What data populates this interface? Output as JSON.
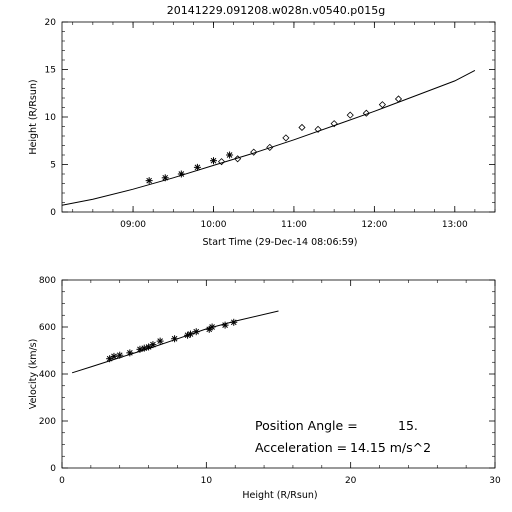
{
  "chart_data": [
    {
      "type": "scatter",
      "title": "20141229.091208.w028n.v0540.p015g",
      "xlabel": "Start Time (29-Dec-14 08:06:59)",
      "ylabel": "Height (R/Rsun)",
      "x_axis": {
        "start": "08:06:59",
        "end": "13:30",
        "ticks": [
          "09:00",
          "10:00",
          "11:00",
          "12:00",
          "13:00"
        ]
      },
      "ylim": [
        0,
        20
      ],
      "yticks": [
        0,
        5,
        10,
        15,
        20
      ],
      "fit_line": {
        "x": [
          "08:06:59",
          "08:30",
          "09:00",
          "09:30",
          "10:00",
          "10:30",
          "11:00",
          "11:30",
          "12:00",
          "12:30",
          "13:00",
          "13:15"
        ],
        "y": [
          0.7,
          1.35,
          2.4,
          3.6,
          4.9,
          6.2,
          7.6,
          9.1,
          10.6,
          12.2,
          13.8,
          14.9
        ]
      },
      "series": [
        {
          "marker": "star",
          "x": [
            "09:12",
            "09:24",
            "09:36",
            "09:48",
            "10:00",
            "10:12"
          ],
          "y": [
            3.3,
            3.6,
            4.0,
            4.7,
            5.4,
            6.0
          ]
        },
        {
          "marker": "diamond",
          "x": [
            "10:06",
            "10:18",
            "10:30",
            "10:42",
            "10:54",
            "11:06",
            "11:18",
            "11:30",
            "11:42",
            "11:54",
            "12:06",
            "12:18"
          ],
          "y": [
            5.3,
            5.6,
            6.3,
            6.8,
            7.8,
            8.9,
            8.7,
            9.3,
            10.2,
            10.4,
            11.3,
            11.9
          ]
        }
      ]
    },
    {
      "type": "scatter",
      "xlabel": "Height (R/Rsun)",
      "ylabel": "Velocity (km/s)",
      "xlim": [
        0,
        30
      ],
      "ylim": [
        0,
        800
      ],
      "xticks": [
        0,
        10,
        20,
        30
      ],
      "yticks": [
        0,
        200,
        400,
        600,
        800
      ],
      "fit_line": {
        "x": [
          0.7,
          2,
          4,
          6,
          8,
          10,
          12,
          15
        ],
        "y": [
          405,
          430,
          470,
          508,
          550,
          592,
          625,
          668
        ]
      },
      "series": [
        {
          "marker": "star",
          "x": [
            3.3,
            3.6,
            4.0,
            4.7,
            5.4,
            5.7,
            6.0,
            6.3,
            6.8,
            7.8,
            8.7,
            8.9,
            9.3,
            10.2,
            10.4,
            11.3,
            11.9
          ],
          "y": [
            465,
            475,
            480,
            490,
            505,
            510,
            515,
            525,
            540,
            550,
            565,
            570,
            580,
            590,
            600,
            608,
            620
          ]
        }
      ],
      "annotations": [
        {
          "label": "Position Angle =",
          "value": "15."
        },
        {
          "label": "Acceleration =",
          "value": "14.15 m/s^2"
        }
      ]
    }
  ]
}
